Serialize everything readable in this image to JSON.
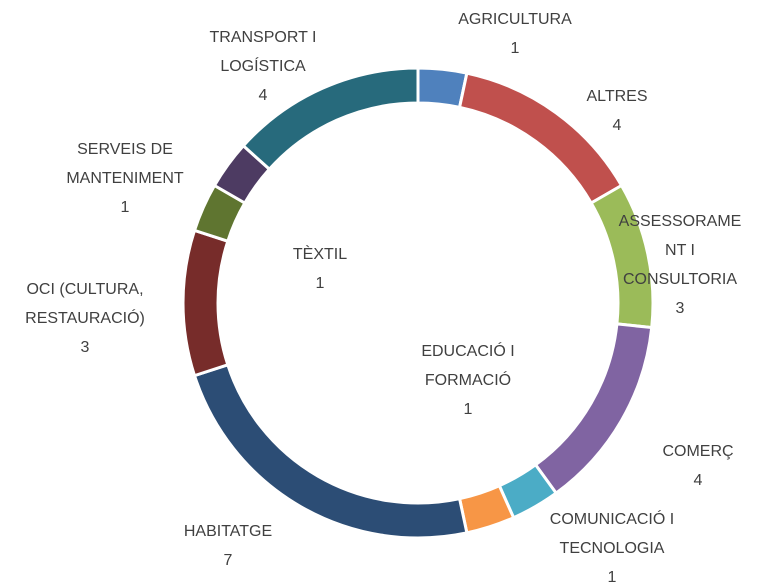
{
  "chart_data": {
    "type": "doughnut",
    "categories": [
      "AGRICULTURA",
      "ALTRES",
      "ASSESSORAMENT I CONSULTORIA",
      "COMERÇ",
      "COMUNICACIÓ I TECNOLOGIA",
      "EDUCACIÓ I FORMACIÓ",
      "HABITATGE",
      "OCI (CULTURA, RESTAURACIÓ)",
      "SERVEIS DE MANTENIMENT",
      "TÈXTIL",
      "TRANSPORT I LOGÍSTICA"
    ],
    "values": [
      1,
      4,
      3,
      4,
      1,
      1,
      7,
      3,
      1,
      1,
      4
    ],
    "colors": [
      "#4f81bd",
      "#c0504d",
      "#9bbb59",
      "#8064a2",
      "#4bacc6",
      "#f79646",
      "#2c4d75",
      "#772c2a",
      "#5f7530",
      "#4d3b62",
      "#276a7c"
    ]
  }
}
